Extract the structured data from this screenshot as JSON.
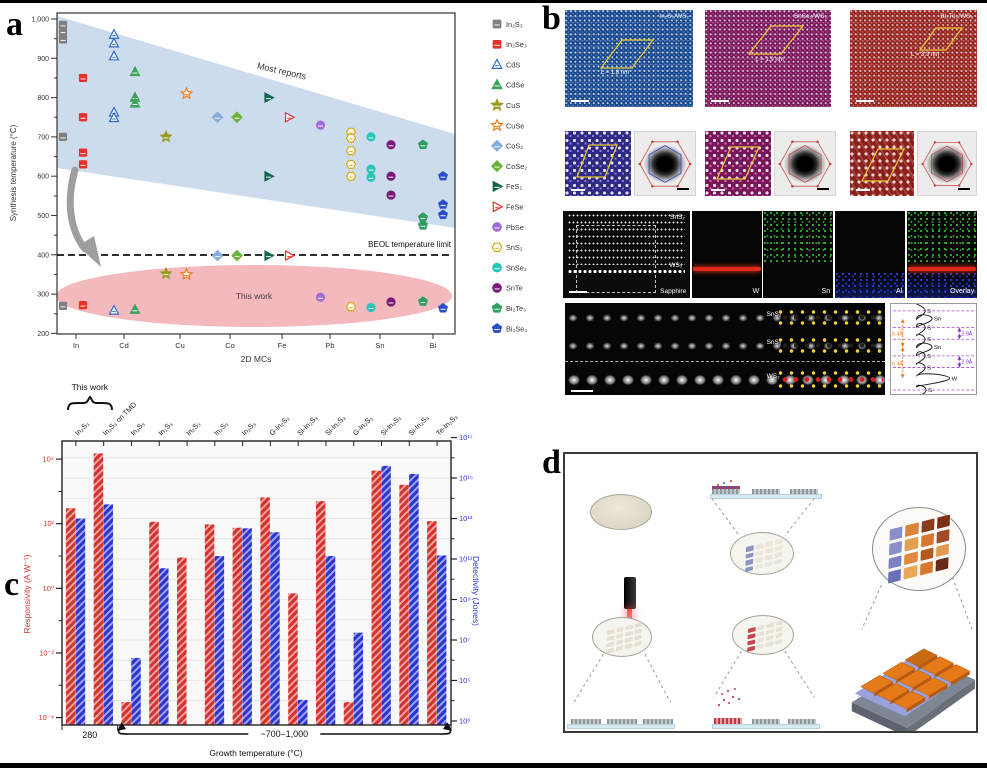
{
  "panels": {
    "a": "a",
    "b": "b",
    "c": "c",
    "d": "d"
  },
  "chart_data": [
    {
      "type": "scatter",
      "xlabel": "2D MCs",
      "ylabel": "Synthesis temperature (°C)",
      "categories": [
        "In",
        "Cd",
        "Cu",
        "Co",
        "Fe",
        "Pb",
        "Sn",
        "Bi"
      ],
      "ylim": [
        200,
        1000
      ],
      "yticks": [
        "1,000",
        "900",
        "800",
        "700",
        "600",
        "500",
        "400",
        "300",
        "200"
      ],
      "beol_limit_c": 400,
      "annotations": {
        "band_label": "Most reports",
        "beol_label": "BEOL temperature limit",
        "this_work_label": "This work"
      },
      "series": [
        {
          "name": "In₂S₃",
          "category": "In",
          "symbol": "square",
          "color": "#7f7f7f",
          "open": false,
          "reported_temps": [
            985,
            968,
            948,
            700
          ],
          "this_work_temp": 270
        },
        {
          "name": "In₂Se₃",
          "category": "In",
          "symbol": "square",
          "color": "#e8302a",
          "open": false,
          "reported_temps": [
            850,
            750,
            660,
            630
          ],
          "this_work_temp": 272
        },
        {
          "name": "CdS",
          "category": "Cd",
          "symbol": "triangle",
          "color": "#2e6bc4",
          "open": true,
          "reported_temps": [
            960,
            938,
            905,
            762,
            748
          ],
          "this_work_temp": 258
        },
        {
          "name": "CdSe",
          "category": "Cd",
          "symbol": "triangle",
          "color": "#3aa35c",
          "open": false,
          "reported_temps": [
            865,
            800,
            785
          ],
          "this_work_temp": 260
        },
        {
          "name": "CuS",
          "category": "Cu",
          "symbol": "star",
          "color": "#9a9a20",
          "open": false,
          "reported_temps": [
            700
          ],
          "this_work_temp": 352
        },
        {
          "name": "CuSe",
          "category": "Cu",
          "symbol": "star",
          "color": "#ef7c1a",
          "open": true,
          "reported_temps": [
            810
          ],
          "this_work_temp": 350
        },
        {
          "name": "CoS₂",
          "category": "Co",
          "symbol": "diamond",
          "color": "#85aede",
          "open": false,
          "reported_temps": [
            750
          ],
          "this_work_temp": 398
        },
        {
          "name": "CoSe₂",
          "category": "Co",
          "symbol": "diamond",
          "color": "#6cb23c",
          "open": false,
          "reported_temps": [
            750
          ],
          "this_work_temp": 398
        },
        {
          "name": "FeS₂",
          "category": "Fe",
          "symbol": "triangle-right",
          "color": "#156351",
          "open": false,
          "reported_temps": [
            800,
            600
          ],
          "this_work_temp": 398
        },
        {
          "name": "FeSe",
          "category": "Fe",
          "symbol": "triangle-right",
          "color": "#e8302a",
          "open": true,
          "reported_temps": [
            750
          ],
          "this_work_temp": 398
        },
        {
          "name": "PbSe",
          "category": "Pb",
          "symbol": "circle",
          "color": "#a06cd5",
          "open": false,
          "reported_temps": [
            730
          ],
          "this_work_temp": 292
        },
        {
          "name": "SnS₂",
          "category": "Sn",
          "symbol": "hexagon",
          "color": "#d9a80a",
          "open": true,
          "reported_temps": [
            712,
            697,
            665,
            630,
            600
          ],
          "this_work_temp": 268
        },
        {
          "name": "SnSe₂",
          "category": "Sn",
          "symbol": "circle",
          "color": "#28c4b8",
          "open": false,
          "reported_temps": [
            700,
            618,
            597
          ],
          "this_work_temp": 266
        },
        {
          "name": "SnTe",
          "category": "Sn",
          "symbol": "circle",
          "color": "#7a1a78",
          "open": false,
          "reported_temps": [
            680,
            600,
            552
          ],
          "this_work_temp": 280
        },
        {
          "name": "Bi₂Te₃",
          "category": "Bi",
          "symbol": "pentagon",
          "color": "#2d9e62",
          "open": false,
          "reported_temps": [
            680,
            495,
            475
          ],
          "this_work_temp": 281
        },
        {
          "name": "Bi₂Se₃",
          "category": "Bi",
          "symbol": "pentagon",
          "color": "#2850c8",
          "open": false,
          "reported_temps": [
            600,
            528,
            502
          ],
          "this_work_temp": 264
        }
      ]
    },
    {
      "type": "bar",
      "categories": [
        "In₂S₃",
        "In₂S₃ on TMD",
        "In₂S₃",
        "In₂S₃",
        "In₂S₃",
        "In₂S₃",
        "In₂S₃",
        "G-In₂S₃",
        "Si-In₂S₃",
        "Si-In₂S₃",
        "G-In₂S₃",
        "Si-In₂S₃",
        "Si-In₂S₃",
        "Te-In₂S₃"
      ],
      "series": [
        {
          "name": "Responsivity",
          "axis": "left",
          "color": "#cf2f2f",
          "values": [
            300,
            15000,
            0.0003,
            115,
            9,
            95,
            75,
            650,
            0.7,
            500,
            0.0003,
            4400,
            1600,
            120
          ]
        },
        {
          "name": "Detectivity",
          "axis": "right",
          "color": "#2d35cf",
          "values": [
            10000000000000.0,
            50000000000000.0,
            1300000.0,
            35000000000.0,
            null,
            140000000000.0,
            3300000000000.0,
            2100000000000.0,
            11000.0,
            140000000000.0,
            23000000.0,
            4000000000000000.0,
            1600000000000000.0,
            150000000000.0
          ]
        }
      ],
      "left_axis": {
        "label": "Responsivity (A W⁻¹)",
        "tick_labels": [
          "10⁴",
          "10²",
          "10⁰",
          "10⁻²",
          "10⁻⁴"
        ],
        "tick_logs": [
          4,
          2,
          0,
          -2,
          -4
        ],
        "range_log": [
          -4.23,
          4.56
        ]
      },
      "right_axis": {
        "label": "Detectivity (Jones)",
        "tick_labels": [
          "10¹⁷",
          "10¹⁵",
          "10¹³",
          "10¹¹",
          "10⁹",
          "10⁷",
          "10⁵",
          "10³"
        ],
        "tick_logs": [
          17,
          15,
          13,
          11,
          9,
          7,
          5,
          3
        ],
        "range_log": [
          2.8,
          16.83
        ]
      },
      "x_groups": [
        {
          "label": "280",
          "from": 0,
          "to": 1
        },
        {
          "label": "~700–1,000",
          "from": 2,
          "to": 13
        }
      ],
      "xlabel": "Growth temperature (°C)",
      "annotation": "This work"
    }
  ],
  "panel_b": {
    "stem_images": [
      {
        "label": "In₂S₃/WS₂",
        "moire": "L = 1.8 nm",
        "color": "#17468c"
      },
      {
        "label": "SnSe₂/WS₂",
        "moire": "L = 1.9 nm",
        "color": "#77175a"
      },
      {
        "label": "Bi₂Te₃/WS₂",
        "moire": "L = 3.3 nm",
        "color": "#93231f"
      }
    ],
    "cross_section": {
      "layer_labels": [
        "SnS₂",
        "WS₂",
        "Sapphire"
      ]
    },
    "eds_labels": [
      "W",
      "Sn",
      "Al",
      "Overlay"
    ],
    "interface": {
      "layer_labels": [
        "SnS₂",
        "SnS₂",
        "WS₂"
      ],
      "profile_atoms": [
        "S",
        "Sn",
        "S",
        "S",
        "Sn",
        "S",
        "S",
        "W",
        "S"
      ],
      "spacing_labels": [
        "6.4Å",
        "2.9Å",
        "6.4Å",
        "2.9Å"
      ]
    }
  },
  "panel_d": {
    "tile_colors": [
      "#8a8fc9",
      "#d9843a",
      "#8a3a1e",
      "#7a3018",
      "#8a8fc9",
      "#e0a050",
      "#d87830",
      "#a04a28",
      "#7a80c0",
      "#e08840",
      "#b05a20",
      "#e09a50",
      "#6a70b8",
      "#e8a858",
      "#d87830",
      "#6a2a14"
    ]
  }
}
